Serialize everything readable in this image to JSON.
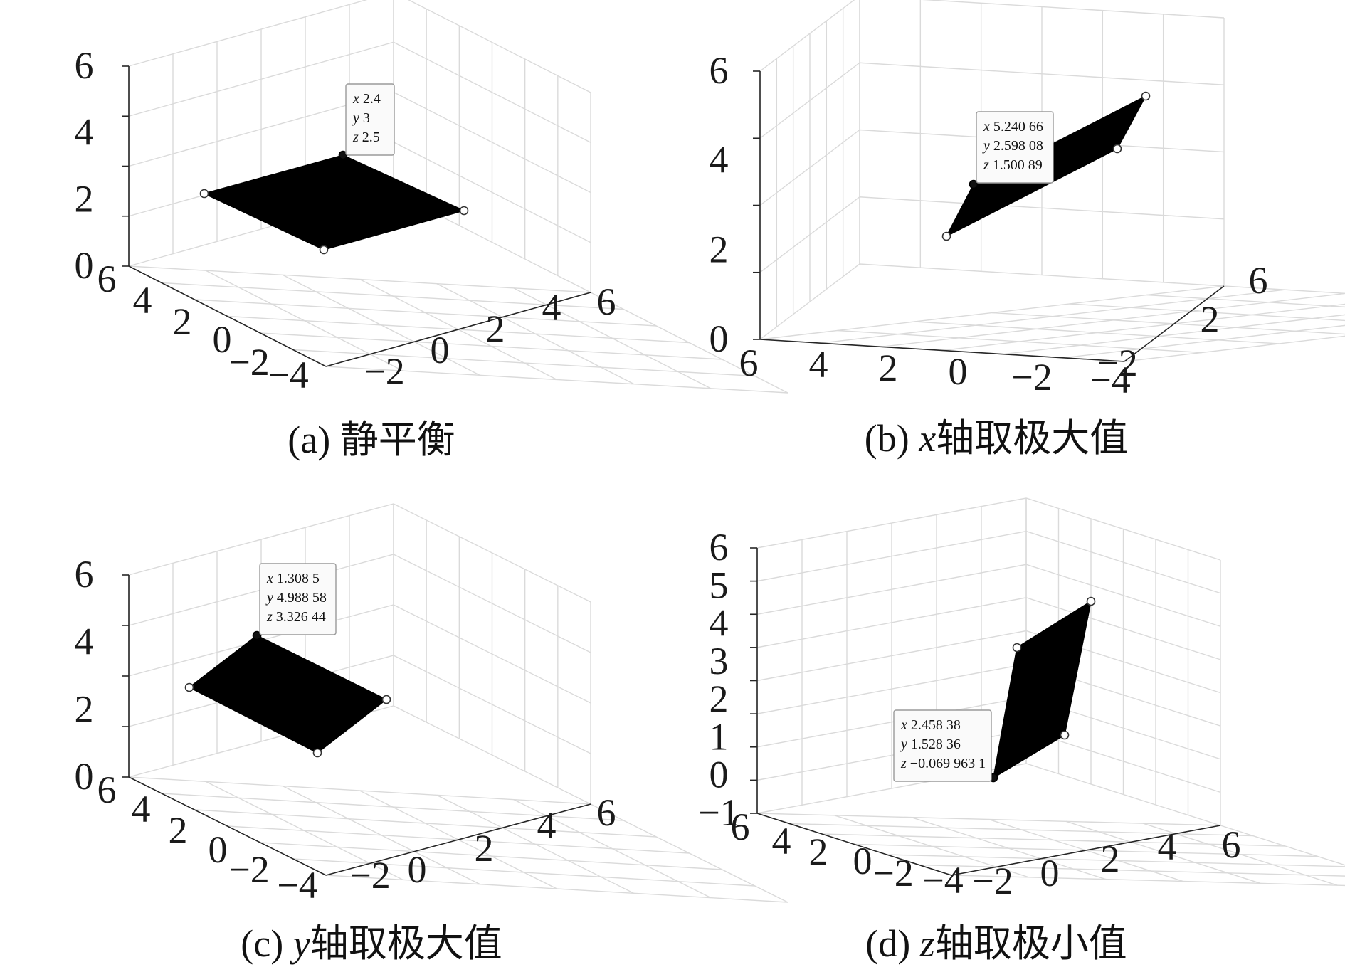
{
  "chart_data": [
    {
      "type": "surface3d",
      "caption": {
        "prefix": "(a) ",
        "var": "",
        "suffix": "静平衡"
      },
      "z_ticks": [
        "6",
        "4",
        "2",
        "0"
      ],
      "left_ticks": [
        "6",
        "4",
        "2",
        "0",
        "−2",
        "−4"
      ],
      "right_ticks": [
        "−2",
        "0",
        "2",
        "4",
        "6"
      ],
      "datatip": [
        {
          "key": "x",
          "value": "2.4"
        },
        {
          "key": "y",
          "value": "3"
        },
        {
          "key": "z",
          "value": "2.5"
        }
      ]
    },
    {
      "type": "surface3d",
      "caption": {
        "prefix": "(b) ",
        "var": "x",
        "suffix": "轴取极大值"
      },
      "z_ticks": [
        "6",
        "4",
        "2",
        "0"
      ],
      "left_ticks": [
        "6",
        "4",
        "2",
        "0",
        "−2",
        "−4"
      ],
      "right_ticks": [
        "−2",
        "2",
        "6"
      ],
      "datatip": [
        {
          "key": "x",
          "value": "5.240 66"
        },
        {
          "key": "y",
          "value": "2.598 08"
        },
        {
          "key": "z",
          "value": "1.500 89"
        }
      ]
    },
    {
      "type": "surface3d",
      "caption": {
        "prefix": "(c) ",
        "var": "y",
        "suffix": "轴取极大值"
      },
      "z_ticks": [
        "6",
        "4",
        "2",
        "0"
      ],
      "left_ticks": [
        "6",
        "4",
        "2",
        "0",
        "−2",
        "−4"
      ],
      "right_ticks": [
        "−2",
        "0",
        "2",
        "4",
        "6"
      ],
      "datatip": [
        {
          "key": "x",
          "value": "1.308 5"
        },
        {
          "key": "y",
          "value": "4.988 58"
        },
        {
          "key": "z",
          "value": "3.326 44"
        }
      ]
    },
    {
      "type": "surface3d",
      "caption": {
        "prefix": "(d) ",
        "var": "z",
        "suffix": "轴取极小值"
      },
      "z_ticks": [
        "6",
        "5",
        "4",
        "3",
        "2",
        "1",
        "0",
        "−1"
      ],
      "left_ticks": [
        "6",
        "4",
        "2",
        "0",
        "−2",
        "−4"
      ],
      "right_ticks": [
        "−2",
        "0",
        "2",
        "4",
        "6"
      ],
      "datatip": [
        {
          "key": "x",
          "value": "2.458 38"
        },
        {
          "key": "y",
          "value": "1.528 36"
        },
        {
          "key": "z",
          "value": "−0.069 963 1"
        }
      ]
    }
  ]
}
